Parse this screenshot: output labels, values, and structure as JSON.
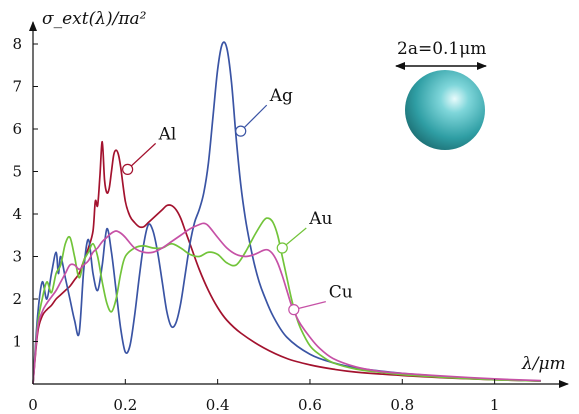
{
  "chart_data": {
    "type": "line",
    "title": "",
    "ylabel": "σ_ext(λ)/πa²",
    "xlabel": "λ/μm",
    "xlim": [
      0,
      1.12
    ],
    "ylim": [
      0,
      8.4
    ],
    "x_ticks": [
      0,
      0.2,
      0.4,
      0.6,
      0.8,
      1
    ],
    "x_tick_labels": [
      "0",
      "0.2",
      "0.4",
      "0.6",
      "0.8",
      "1"
    ],
    "y_ticks": [
      1,
      2,
      3,
      4,
      5,
      6,
      7,
      8
    ],
    "y_tick_labels": [
      "1",
      "2",
      "3",
      "4",
      "5",
      "6",
      "7",
      "8"
    ],
    "grid": false,
    "annotation": {
      "size_label": "2a=0.1μm",
      "sphere_color": "#2f9ea4"
    },
    "series": [
      {
        "name": "Al",
        "color": "#a3122e",
        "label_at": [
          0.205,
          5.05
        ],
        "x": [
          0.0,
          0.01,
          0.02,
          0.03,
          0.04,
          0.05,
          0.06,
          0.07,
          0.08,
          0.09,
          0.1,
          0.11,
          0.12,
          0.13,
          0.135,
          0.14,
          0.145,
          0.15,
          0.155,
          0.16,
          0.165,
          0.17,
          0.175,
          0.18,
          0.185,
          0.19,
          0.2,
          0.21,
          0.22,
          0.23,
          0.24,
          0.25,
          0.26,
          0.27,
          0.28,
          0.29,
          0.3,
          0.31,
          0.32,
          0.33,
          0.34,
          0.36,
          0.38,
          0.4,
          0.42,
          0.45,
          0.5,
          0.55,
          0.6,
          0.65,
          0.7,
          0.8,
          0.9,
          1.0,
          1.1
        ],
        "y": [
          0.0,
          1.2,
          1.6,
          1.75,
          1.85,
          2.0,
          2.1,
          2.2,
          2.3,
          2.45,
          2.6,
          2.9,
          3.2,
          3.6,
          4.3,
          4.2,
          4.9,
          5.7,
          4.8,
          4.5,
          4.6,
          5.0,
          5.4,
          5.5,
          5.4,
          5.1,
          4.3,
          3.95,
          3.8,
          3.7,
          3.7,
          3.8,
          3.9,
          4.0,
          4.1,
          4.2,
          4.2,
          4.1,
          3.9,
          3.6,
          3.3,
          2.7,
          2.2,
          1.8,
          1.5,
          1.2,
          0.85,
          0.6,
          0.45,
          0.35,
          0.28,
          0.2,
          0.14,
          0.1,
          0.07
        ]
      },
      {
        "name": "Ag",
        "color": "#3a54a4",
        "label_at": [
          0.45,
          5.95
        ],
        "x": [
          0.0,
          0.01,
          0.02,
          0.03,
          0.04,
          0.05,
          0.055,
          0.06,
          0.07,
          0.08,
          0.09,
          0.1,
          0.11,
          0.12,
          0.13,
          0.14,
          0.15,
          0.16,
          0.17,
          0.18,
          0.19,
          0.2,
          0.21,
          0.22,
          0.23,
          0.24,
          0.25,
          0.26,
          0.27,
          0.28,
          0.29,
          0.3,
          0.31,
          0.32,
          0.33,
          0.34,
          0.35,
          0.36,
          0.37,
          0.38,
          0.39,
          0.4,
          0.41,
          0.42,
          0.43,
          0.44,
          0.45,
          0.46,
          0.47,
          0.48,
          0.49,
          0.5,
          0.52,
          0.55,
          0.6,
          0.65,
          0.7,
          0.8,
          0.9,
          1.0,
          1.1
        ],
        "y": [
          0.0,
          1.6,
          2.4,
          2.0,
          2.6,
          3.1,
          2.6,
          3.0,
          2.5,
          2.0,
          1.5,
          1.2,
          2.7,
          3.4,
          2.6,
          2.2,
          2.8,
          3.65,
          3.1,
          2.2,
          1.3,
          0.75,
          0.9,
          1.6,
          2.5,
          3.3,
          3.75,
          3.6,
          3.1,
          2.4,
          1.7,
          1.35,
          1.45,
          1.9,
          2.6,
          3.3,
          3.8,
          4.1,
          4.5,
          5.2,
          6.3,
          7.4,
          8.0,
          7.9,
          7.1,
          5.8,
          4.7,
          3.9,
          3.3,
          2.8,
          2.4,
          2.1,
          1.6,
          1.1,
          0.7,
          0.5,
          0.38,
          0.25,
          0.17,
          0.11,
          0.07
        ]
      },
      {
        "name": "Au",
        "color": "#72c43a",
        "label_at": [
          0.54,
          3.2
        ],
        "x": [
          0.0,
          0.01,
          0.02,
          0.03,
          0.04,
          0.05,
          0.06,
          0.07,
          0.08,
          0.09,
          0.1,
          0.11,
          0.12,
          0.13,
          0.14,
          0.15,
          0.16,
          0.17,
          0.18,
          0.19,
          0.2,
          0.22,
          0.24,
          0.26,
          0.28,
          0.3,
          0.32,
          0.34,
          0.36,
          0.38,
          0.4,
          0.42,
          0.44,
          0.46,
          0.48,
          0.5,
          0.51,
          0.52,
          0.53,
          0.54,
          0.55,
          0.56,
          0.57,
          0.58,
          0.6,
          0.62,
          0.65,
          0.7,
          0.75,
          0.8,
          0.9,
          1.0,
          1.1
        ],
        "y": [
          0.0,
          1.4,
          2.0,
          2.4,
          2.15,
          2.6,
          2.8,
          3.3,
          3.45,
          3.0,
          2.5,
          2.9,
          3.1,
          3.3,
          3.0,
          2.4,
          1.9,
          1.7,
          2.0,
          2.6,
          3.0,
          3.2,
          3.25,
          3.2,
          3.2,
          3.3,
          3.2,
          3.05,
          3.0,
          3.1,
          3.05,
          2.85,
          2.8,
          3.1,
          3.5,
          3.85,
          3.9,
          3.8,
          3.5,
          3.0,
          2.5,
          2.0,
          1.6,
          1.3,
          0.9,
          0.7,
          0.5,
          0.35,
          0.28,
          0.22,
          0.15,
          0.1,
          0.07
        ]
      },
      {
        "name": "Cu",
        "color": "#c651a6",
        "label_at": [
          0.565,
          1.75
        ],
        "x": [
          0.0,
          0.01,
          0.02,
          0.03,
          0.04,
          0.05,
          0.06,
          0.07,
          0.08,
          0.09,
          0.1,
          0.11,
          0.12,
          0.13,
          0.14,
          0.15,
          0.16,
          0.17,
          0.18,
          0.19,
          0.2,
          0.22,
          0.24,
          0.26,
          0.28,
          0.3,
          0.32,
          0.34,
          0.36,
          0.37,
          0.38,
          0.4,
          0.42,
          0.44,
          0.46,
          0.48,
          0.5,
          0.51,
          0.52,
          0.53,
          0.54,
          0.55,
          0.56,
          0.57,
          0.58,
          0.6,
          0.62,
          0.65,
          0.7,
          0.75,
          0.8,
          0.9,
          1.0,
          1.1
        ],
        "y": [
          0.0,
          1.3,
          1.7,
          1.9,
          2.05,
          2.2,
          2.4,
          2.6,
          2.8,
          2.8,
          2.7,
          2.8,
          2.9,
          3.1,
          3.2,
          3.35,
          3.45,
          3.55,
          3.6,
          3.55,
          3.45,
          3.2,
          3.1,
          3.1,
          3.2,
          3.35,
          3.5,
          3.65,
          3.75,
          3.78,
          3.72,
          3.45,
          3.2,
          3.05,
          3.0,
          3.05,
          3.15,
          3.15,
          3.05,
          2.85,
          2.55,
          2.2,
          1.85,
          1.6,
          1.4,
          1.1,
          0.85,
          0.6,
          0.4,
          0.3,
          0.25,
          0.18,
          0.12,
          0.08
        ]
      }
    ]
  }
}
